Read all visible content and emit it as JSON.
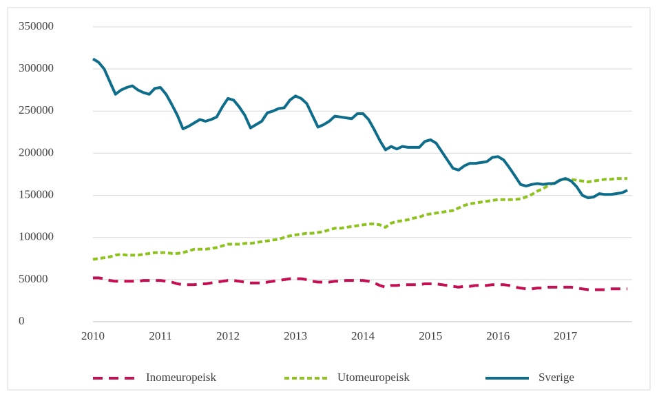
{
  "chart_data": {
    "type": "line",
    "categories": [
      "2010",
      null,
      null,
      null,
      null,
      null,
      null,
      null,
      null,
      null,
      null,
      null,
      "2011",
      null,
      null,
      null,
      null,
      null,
      null,
      null,
      null,
      null,
      null,
      null,
      "2012",
      null,
      null,
      null,
      null,
      null,
      null,
      null,
      null,
      null,
      null,
      null,
      "2013",
      null,
      null,
      null,
      null,
      null,
      null,
      null,
      null,
      null,
      null,
      null,
      "2014",
      null,
      null,
      null,
      null,
      null,
      null,
      null,
      null,
      null,
      null,
      null,
      "2015",
      null,
      null,
      null,
      null,
      null,
      null,
      null,
      null,
      null,
      null,
      null,
      "2016",
      null,
      null,
      null,
      null,
      null,
      null,
      null,
      null,
      null,
      null,
      null,
      "2017",
      null,
      null,
      null,
      null,
      null,
      null,
      null,
      null,
      null,
      null,
      null
    ],
    "series": [
      {
        "name": "Inomeuropeisk",
        "color": "#c40f52",
        "dash": "14 9",
        "values": [
          52000,
          52000,
          51000,
          49000,
          48000,
          48000,
          48000,
          48000,
          48000,
          49000,
          49000,
          49000,
          49000,
          48000,
          47000,
          45000,
          44000,
          44000,
          44000,
          45000,
          45000,
          46000,
          47000,
          48000,
          49000,
          49000,
          48000,
          47000,
          46000,
          46000,
          46000,
          47000,
          48000,
          49000,
          50000,
          51000,
          51000,
          51000,
          50000,
          48000,
          47000,
          47000,
          47000,
          48000,
          48000,
          49000,
          49000,
          49000,
          49000,
          48000,
          46000,
          43000,
          41000,
          43000,
          43000,
          44000,
          44000,
          44000,
          44000,
          45000,
          45000,
          45000,
          44000,
          43000,
          42000,
          41000,
          42000,
          42000,
          43000,
          43000,
          43000,
          44000,
          44000,
          44000,
          43000,
          41000,
          40000,
          39000,
          39000,
          40000,
          40000,
          41000,
          41000,
          41000,
          41000,
          41000,
          40000,
          39000,
          38000,
          38000,
          38000,
          38000,
          39000,
          39000,
          39000,
          39000
        ]
      },
      {
        "name": "Utomeuropeisk",
        "color": "#8dc21f",
        "dash": "7 4",
        "values": [
          74000,
          75000,
          76000,
          77000,
          79000,
          80000,
          79000,
          79000,
          79000,
          80000,
          81000,
          82000,
          82000,
          82000,
          81000,
          81000,
          82000,
          84000,
          86000,
          86000,
          86000,
          87000,
          88000,
          90000,
          92000,
          92000,
          92000,
          93000,
          93000,
          94000,
          95000,
          96000,
          97000,
          98000,
          100000,
          102000,
          103000,
          104000,
          105000,
          105000,
          106000,
          107000,
          109000,
          111000,
          111000,
          112000,
          113000,
          114000,
          115000,
          116000,
          116000,
          115000,
          112000,
          117000,
          119000,
          120000,
          121000,
          123000,
          124000,
          127000,
          128000,
          129000,
          130000,
          131000,
          132000,
          135000,
          138000,
          140000,
          141000,
          142000,
          143000,
          144000,
          145000,
          145000,
          145000,
          145000,
          146000,
          148000,
          151000,
          155000,
          158000,
          162000,
          165000,
          168000,
          169000,
          169000,
          168000,
          167000,
          166000,
          167000,
          168000,
          169000,
          169000,
          170000,
          170000,
          170000
        ]
      },
      {
        "name": "Sverige",
        "color": "#0f6d8c",
        "dash": "none",
        "values": [
          312000,
          308000,
          300000,
          285000,
          270000,
          275000,
          278000,
          280000,
          275000,
          272000,
          270000,
          277000,
          278000,
          270000,
          258000,
          245000,
          229000,
          232000,
          236000,
          240000,
          238000,
          240000,
          243000,
          255000,
          265000,
          263000,
          255000,
          245000,
          230000,
          234000,
          238000,
          248000,
          250000,
          253000,
          254000,
          263000,
          268000,
          265000,
          259000,
          245000,
          231000,
          234000,
          238000,
          244000,
          243000,
          242000,
          241000,
          247000,
          247000,
          240000,
          228000,
          215000,
          204000,
          208000,
          205000,
          208000,
          207000,
          207000,
          207000,
          214000,
          216000,
          212000,
          202000,
          192000,
          182000,
          180000,
          185000,
          188000,
          188000,
          189000,
          190000,
          195000,
          196000,
          192000,
          183000,
          173000,
          163000,
          161000,
          163000,
          164000,
          163000,
          164000,
          164000,
          168000,
          170000,
          167000,
          160000,
          150000,
          147000,
          148000,
          152000,
          151000,
          151000,
          152000,
          153000,
          156000
        ]
      }
    ],
    "ylim": [
      0,
      350000
    ],
    "yticks": [
      0,
      50000,
      100000,
      150000,
      200000,
      250000,
      300000,
      350000
    ],
    "grid": true,
    "legend": "bottom"
  }
}
